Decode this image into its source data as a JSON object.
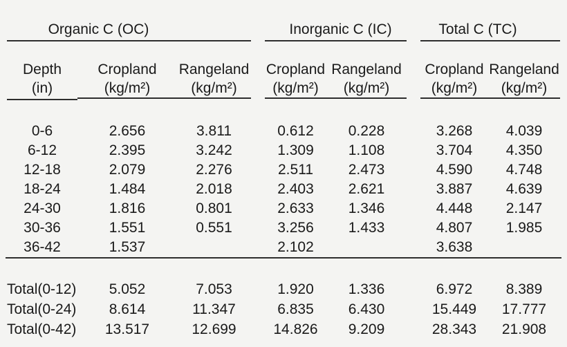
{
  "table": {
    "groups": [
      {
        "label": "Organic C (OC)"
      },
      {
        "label": "Inorganic C (IC)"
      },
      {
        "label": "Total C (TC)"
      }
    ],
    "header": {
      "depth_line1": "Depth",
      "depth_line2": "(in)",
      "cropland": "Cropland",
      "rangeland": "Rangeland",
      "unit": "(kg/m²)"
    },
    "rows": [
      {
        "depth": "0-6",
        "values": [
          "2.656",
          "3.811",
          "0.612",
          "0.228",
          "3.268",
          "4.039"
        ]
      },
      {
        "depth": "6-12",
        "values": [
          "2.395",
          "3.242",
          "1.309",
          "1.108",
          "3.704",
          "4.350"
        ]
      },
      {
        "depth": "12-18",
        "values": [
          "2.079",
          "2.276",
          "2.511",
          "2.473",
          "4.590",
          "4.748"
        ]
      },
      {
        "depth": "18-24",
        "values": [
          "1.484",
          "2.018",
          "2.403",
          "2.621",
          "3.887",
          "4.639"
        ]
      },
      {
        "depth": "24-30",
        "values": [
          "1.816",
          "0.801",
          "2.633",
          "1.346",
          "4.448",
          "2.147"
        ]
      },
      {
        "depth": "30-36",
        "values": [
          "1.551",
          "0.551",
          "3.256",
          "1.433",
          "4.807",
          "1.985"
        ]
      },
      {
        "depth": "36-42",
        "values": [
          "1.537",
          "",
          "2.102",
          "",
          "3.638",
          ""
        ]
      }
    ],
    "totals": [
      {
        "label": "Total(0-12)",
        "values": [
          "5.052",
          "7.053",
          "1.920",
          "1.336",
          "6.972",
          "8.389"
        ]
      },
      {
        "label": "Total(0-24)",
        "values": [
          "8.614",
          "11.347",
          "6.835",
          "6.430",
          "15.449",
          "17.777"
        ]
      },
      {
        "label": "Total(0-42)",
        "values": [
          "13.517",
          "12.699",
          "14.826",
          "9.209",
          "28.343",
          "21.908"
        ]
      }
    ],
    "colors": {
      "background": "#f4f4f2",
      "text": "#1a1a1a",
      "rule": "#2d2d2d"
    }
  }
}
